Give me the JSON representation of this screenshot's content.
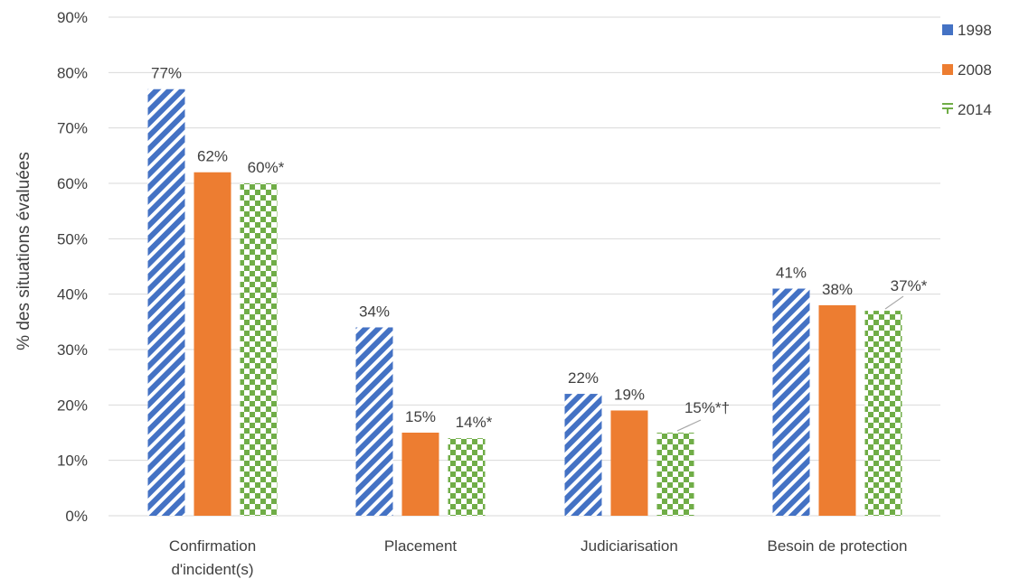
{
  "chart_data": {
    "type": "bar",
    "title": "",
    "xlabel": "",
    "ylabel": "% des situations évaluées",
    "ylim": [
      0,
      90
    ],
    "y_tick_step": 10,
    "y_tick_labels": [
      "0%",
      "10%",
      "20%",
      "30%",
      "40%",
      "50%",
      "60%",
      "70%",
      "80%",
      "90%"
    ],
    "grid": true,
    "legend_position": "right",
    "categories": [
      [
        "Confirmation",
        "d'incident(s)"
      ],
      [
        "Placement"
      ],
      [
        "Judiciarisation"
      ],
      [
        "Besoin de protection"
      ]
    ],
    "series": [
      {
        "name": "1998",
        "color": "#4472C4",
        "pattern": "diagonal-stripes",
        "values": [
          77,
          34,
          22,
          41
        ],
        "labels": [
          "77%",
          "34%",
          "22%",
          "41%"
        ]
      },
      {
        "name": "2008",
        "color": "#ED7D31",
        "pattern": "solid",
        "values": [
          62,
          15,
          19,
          38
        ],
        "labels": [
          "62%",
          "15%",
          "19%",
          "38%"
        ]
      },
      {
        "name": "2014",
        "color": "#70AD47",
        "pattern": "checkerboard",
        "values": [
          60,
          14,
          15,
          37
        ],
        "labels": [
          "60%*",
          "14%*",
          "15%*†",
          "37%*"
        ]
      }
    ]
  }
}
